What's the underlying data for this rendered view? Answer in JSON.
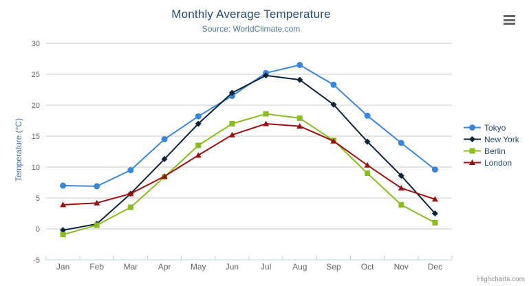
{
  "chart": {
    "title": "Monthly Average Temperature",
    "subtitle": "Source: WorldClimate.com",
    "y_axis_title": "Temperature (°C)",
    "credits": "Highcharts.com",
    "menu_icon": "hamburger-icon"
  },
  "colors": {
    "title": "#274b6d",
    "subtitle": "#4d759e",
    "axis_title": "#4572a7",
    "tick_label": "#666666",
    "grid_line": "#c8c8c8",
    "axis_line": "#c0d0e0",
    "menu_icon": "#666666",
    "credits": "#909090"
  },
  "chart_data": {
    "type": "line",
    "title": "Monthly Average Temperature",
    "subtitle": "Source: WorldClimate.com",
    "xlabel": "",
    "ylabel": "Temperature (°C)",
    "ylim": [
      -5,
      30
    ],
    "y_tick_interval": 5,
    "grid": true,
    "legend_position": "right",
    "categories": [
      "Jan",
      "Feb",
      "Mar",
      "Apr",
      "May",
      "Jun",
      "Jul",
      "Aug",
      "Sep",
      "Oct",
      "Nov",
      "Dec"
    ],
    "series": [
      {
        "name": "Tokyo",
        "color": "#3a87d9",
        "marker": "circle",
        "values": [
          7.0,
          6.9,
          9.5,
          14.5,
          18.2,
          21.5,
          25.2,
          26.5,
          23.3,
          18.3,
          13.9,
          9.6
        ]
      },
      {
        "name": "New York",
        "color": "#0d233a",
        "marker": "diamond",
        "values": [
          -0.2,
          0.8,
          5.7,
          11.3,
          17.0,
          22.0,
          24.8,
          24.1,
          20.1,
          14.1,
          8.6,
          2.5
        ]
      },
      {
        "name": "Berlin",
        "color": "#8bbc21",
        "marker": "square",
        "values": [
          -0.9,
          0.6,
          3.5,
          8.4,
          13.5,
          17.0,
          18.6,
          17.9,
          14.3,
          9.0,
          3.9,
          1.0
        ]
      },
      {
        "name": "London",
        "color": "#9b0f0f",
        "marker": "triangle",
        "values": [
          3.9,
          4.2,
          5.7,
          8.5,
          11.9,
          15.2,
          17.0,
          16.6,
          14.2,
          10.3,
          6.6,
          4.8
        ]
      }
    ]
  }
}
